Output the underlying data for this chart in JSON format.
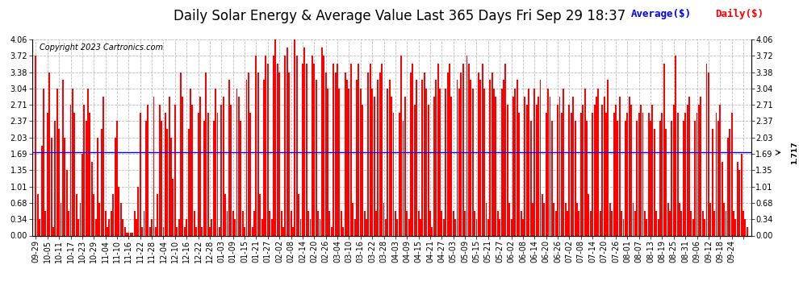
{
  "title": "Daily Solar Energy & Average Value Last 365 Days Fri Sep 29 18:37",
  "copyright": "Copyright 2023 Cartronics.com",
  "average_value": 1.717,
  "average_label": "1.717",
  "ylim": [
    0.0,
    4.06
  ],
  "yticks": [
    0.0,
    0.34,
    0.68,
    1.01,
    1.35,
    1.69,
    2.03,
    2.37,
    2.71,
    3.04,
    3.38,
    3.72,
    4.06
  ],
  "bar_color": "#FF0000",
  "avg_line_color": "#0000FF",
  "background_color": "#FFFFFF",
  "grid_color": "#AAAAAA",
  "title_fontsize": 12,
  "tick_fontsize": 7,
  "copyright_fontsize": 7,
  "legend_fontsize": 9,
  "legend_avg_color": "#0000FF",
  "legend_daily_color": "#FF0000",
  "x_labels": [
    "09-29",
    "10-05",
    "10-11",
    "10-17",
    "10-23",
    "10-29",
    "11-04",
    "11-10",
    "11-16",
    "11-22",
    "11-28",
    "12-04",
    "12-10",
    "12-16",
    "12-22",
    "12-28",
    "01-03",
    "01-09",
    "01-15",
    "01-21",
    "01-27",
    "02-02",
    "02-08",
    "02-14",
    "02-20",
    "02-26",
    "03-04",
    "03-10",
    "03-16",
    "03-22",
    "03-28",
    "04-03",
    "04-09",
    "04-15",
    "04-21",
    "04-27",
    "05-03",
    "05-09",
    "05-15",
    "05-21",
    "05-27",
    "06-02",
    "06-08",
    "06-14",
    "06-20",
    "06-26",
    "07-02",
    "07-08",
    "07-14",
    "07-20",
    "07-26",
    "08-01",
    "08-07",
    "08-13",
    "08-19",
    "08-25",
    "08-31",
    "09-06",
    "09-12",
    "09-18",
    "09-24"
  ],
  "daily_values": [
    3.72,
    0.85,
    0.34,
    1.86,
    3.04,
    0.51,
    2.54,
    3.38,
    2.03,
    0.17,
    2.37,
    3.04,
    2.2,
    0.68,
    3.22,
    2.03,
    1.35,
    0.51,
    2.71,
    3.04,
    2.54,
    0.85,
    0.34,
    0.68,
    1.69,
    2.71,
    2.37,
    3.04,
    2.54,
    1.52,
    0.85,
    0.34,
    2.03,
    0.68,
    2.2,
    2.88,
    0.51,
    0.17,
    0.34,
    0.51,
    0.85,
    2.03,
    2.37,
    1.01,
    0.68,
    0.34,
    0.17,
    0.05,
    0.05,
    0.05,
    0.05,
    0.51,
    0.34,
    1.01,
    2.54,
    0.17,
    0.51,
    2.37,
    2.71,
    0.17,
    0.34,
    2.88,
    0.17,
    0.85,
    2.71,
    2.37,
    0.17,
    2.54,
    2.2,
    2.88,
    2.03,
    1.18,
    2.71,
    0.17,
    0.34,
    3.38,
    2.88,
    0.17,
    0.34,
    2.2,
    3.04,
    2.71,
    0.51,
    0.17,
    2.54,
    2.88,
    0.17,
    2.37,
    3.38,
    2.54,
    0.17,
    0.34,
    2.37,
    3.04,
    2.54,
    0.17,
    2.71,
    2.88,
    0.85,
    0.51,
    3.22,
    2.71,
    0.51,
    0.34,
    3.04,
    2.88,
    2.37,
    0.51,
    0.17,
    3.22,
    3.38,
    2.54,
    0.17,
    0.51,
    3.72,
    3.38,
    0.85,
    0.34,
    3.22,
    3.72,
    3.55,
    0.51,
    0.34,
    3.72,
    4.06,
    3.55,
    3.38,
    0.51,
    0.17,
    3.72,
    3.89,
    3.38,
    0.51,
    0.17,
    4.06,
    3.72,
    0.85,
    0.34,
    3.55,
    3.89,
    3.55,
    0.51,
    0.34,
    3.72,
    3.55,
    3.22,
    0.51,
    0.34,
    3.89,
    3.72,
    3.38,
    3.04,
    0.51,
    0.17,
    3.55,
    3.38,
    3.55,
    3.04,
    0.51,
    0.17,
    3.38,
    3.22,
    3.04,
    3.55,
    0.68,
    0.34,
    3.22,
    3.55,
    3.04,
    2.71,
    0.51,
    0.34,
    3.38,
    3.55,
    3.04,
    2.88,
    0.51,
    3.22,
    3.38,
    3.55,
    0.68,
    0.34,
    3.04,
    3.22,
    2.88,
    2.54,
    0.51,
    0.34,
    2.54,
    3.72,
    2.37,
    2.88,
    0.51,
    0.34,
    3.38,
    3.55,
    2.71,
    3.22,
    0.51,
    0.34,
    3.22,
    3.38,
    3.04,
    2.71,
    0.51,
    0.17,
    2.88,
    3.22,
    3.55,
    3.04,
    0.51,
    0.34,
    3.04,
    3.38,
    3.55,
    2.88,
    0.51,
    0.34,
    3.22,
    3.04,
    3.38,
    3.55,
    0.51,
    3.72,
    3.55,
    3.22,
    3.04,
    0.51,
    0.34,
    3.38,
    3.22,
    3.55,
    3.04,
    0.68,
    0.34,
    3.22,
    3.38,
    3.04,
    2.88,
    0.51,
    0.34,
    3.04,
    3.22,
    3.55,
    2.71,
    0.68,
    0.34,
    2.88,
    3.04,
    3.22,
    2.54,
    0.51,
    0.34,
    2.88,
    2.71,
    3.04,
    2.37,
    0.68,
    3.04,
    2.71,
    2.88,
    3.22,
    0.85,
    0.68,
    2.54,
    3.04,
    2.88,
    2.37,
    0.68,
    0.51,
    2.71,
    2.88,
    2.54,
    3.04,
    0.68,
    0.51,
    2.71,
    2.54,
    2.88,
    2.37,
    0.68,
    0.51,
    2.54,
    2.71,
    3.04,
    2.37,
    0.85,
    0.51,
    2.54,
    2.71,
    2.88,
    3.04,
    0.51,
    2.71,
    2.88,
    2.54,
    3.22,
    0.68,
    0.51,
    2.54,
    2.71,
    2.37,
    2.88,
    0.51,
    0.34,
    2.37,
    2.54,
    2.88,
    2.71,
    0.68,
    0.51,
    2.37,
    2.54,
    2.71,
    2.54,
    0.51,
    0.34,
    2.54,
    2.37,
    2.71,
    2.2,
    0.51,
    0.34,
    2.37,
    2.54,
    3.55,
    2.2,
    0.68,
    0.51,
    2.37,
    2.71,
    3.72,
    2.54,
    0.68,
    0.51,
    2.37,
    2.54,
    2.71,
    2.88,
    0.51,
    0.34,
    2.37,
    2.54,
    2.71,
    2.88,
    0.51,
    0.34,
    3.55,
    3.38,
    0.68,
    2.2,
    0.51,
    2.54,
    2.37,
    2.71,
    1.52,
    0.68,
    0.51,
    2.03,
    2.2,
    2.54,
    0.51,
    0.34,
    1.52,
    1.35,
    1.69,
    0.51,
    0.34,
    0.17
  ]
}
